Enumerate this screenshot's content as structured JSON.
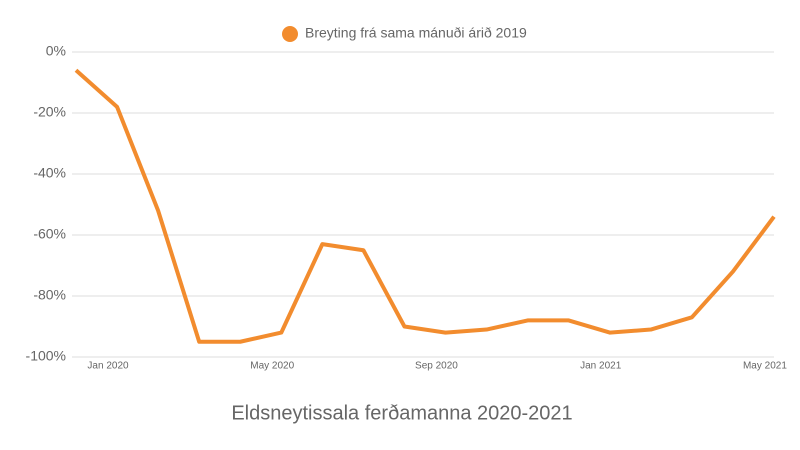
{
  "chart_data": {
    "type": "line",
    "title": "Eldsneytissala ferðamanna 2020-2021",
    "categories": [
      "Jan 2020",
      null,
      null,
      null,
      "May 2020",
      null,
      null,
      null,
      "Sep 2020",
      null,
      null,
      null,
      "Jan 2021",
      null,
      null,
      null,
      "May 2021",
      null
    ],
    "series": [
      {
        "name": "Breyting frá sama mánuði árið 2019",
        "color": "#f28c2e",
        "values": [
          -6,
          -18,
          -52,
          -95,
          -95,
          -92,
          -63,
          -65,
          -90,
          -92,
          -91,
          -88,
          -88,
          -92,
          -91,
          -87,
          -72,
          -54
        ]
      }
    ],
    "ylim": [
      -100,
      0
    ],
    "yticks": [
      {
        "value": -100,
        "label": "-100%"
      },
      {
        "value": -80,
        "label": "-80%"
      },
      {
        "value": -60,
        "label": "-60%"
      },
      {
        "value": -40,
        "label": "-40%"
      },
      {
        "value": -20,
        "label": "-20%"
      },
      {
        "value": 0,
        "label": "0%"
      }
    ],
    "grid": true,
    "legend": "top"
  }
}
